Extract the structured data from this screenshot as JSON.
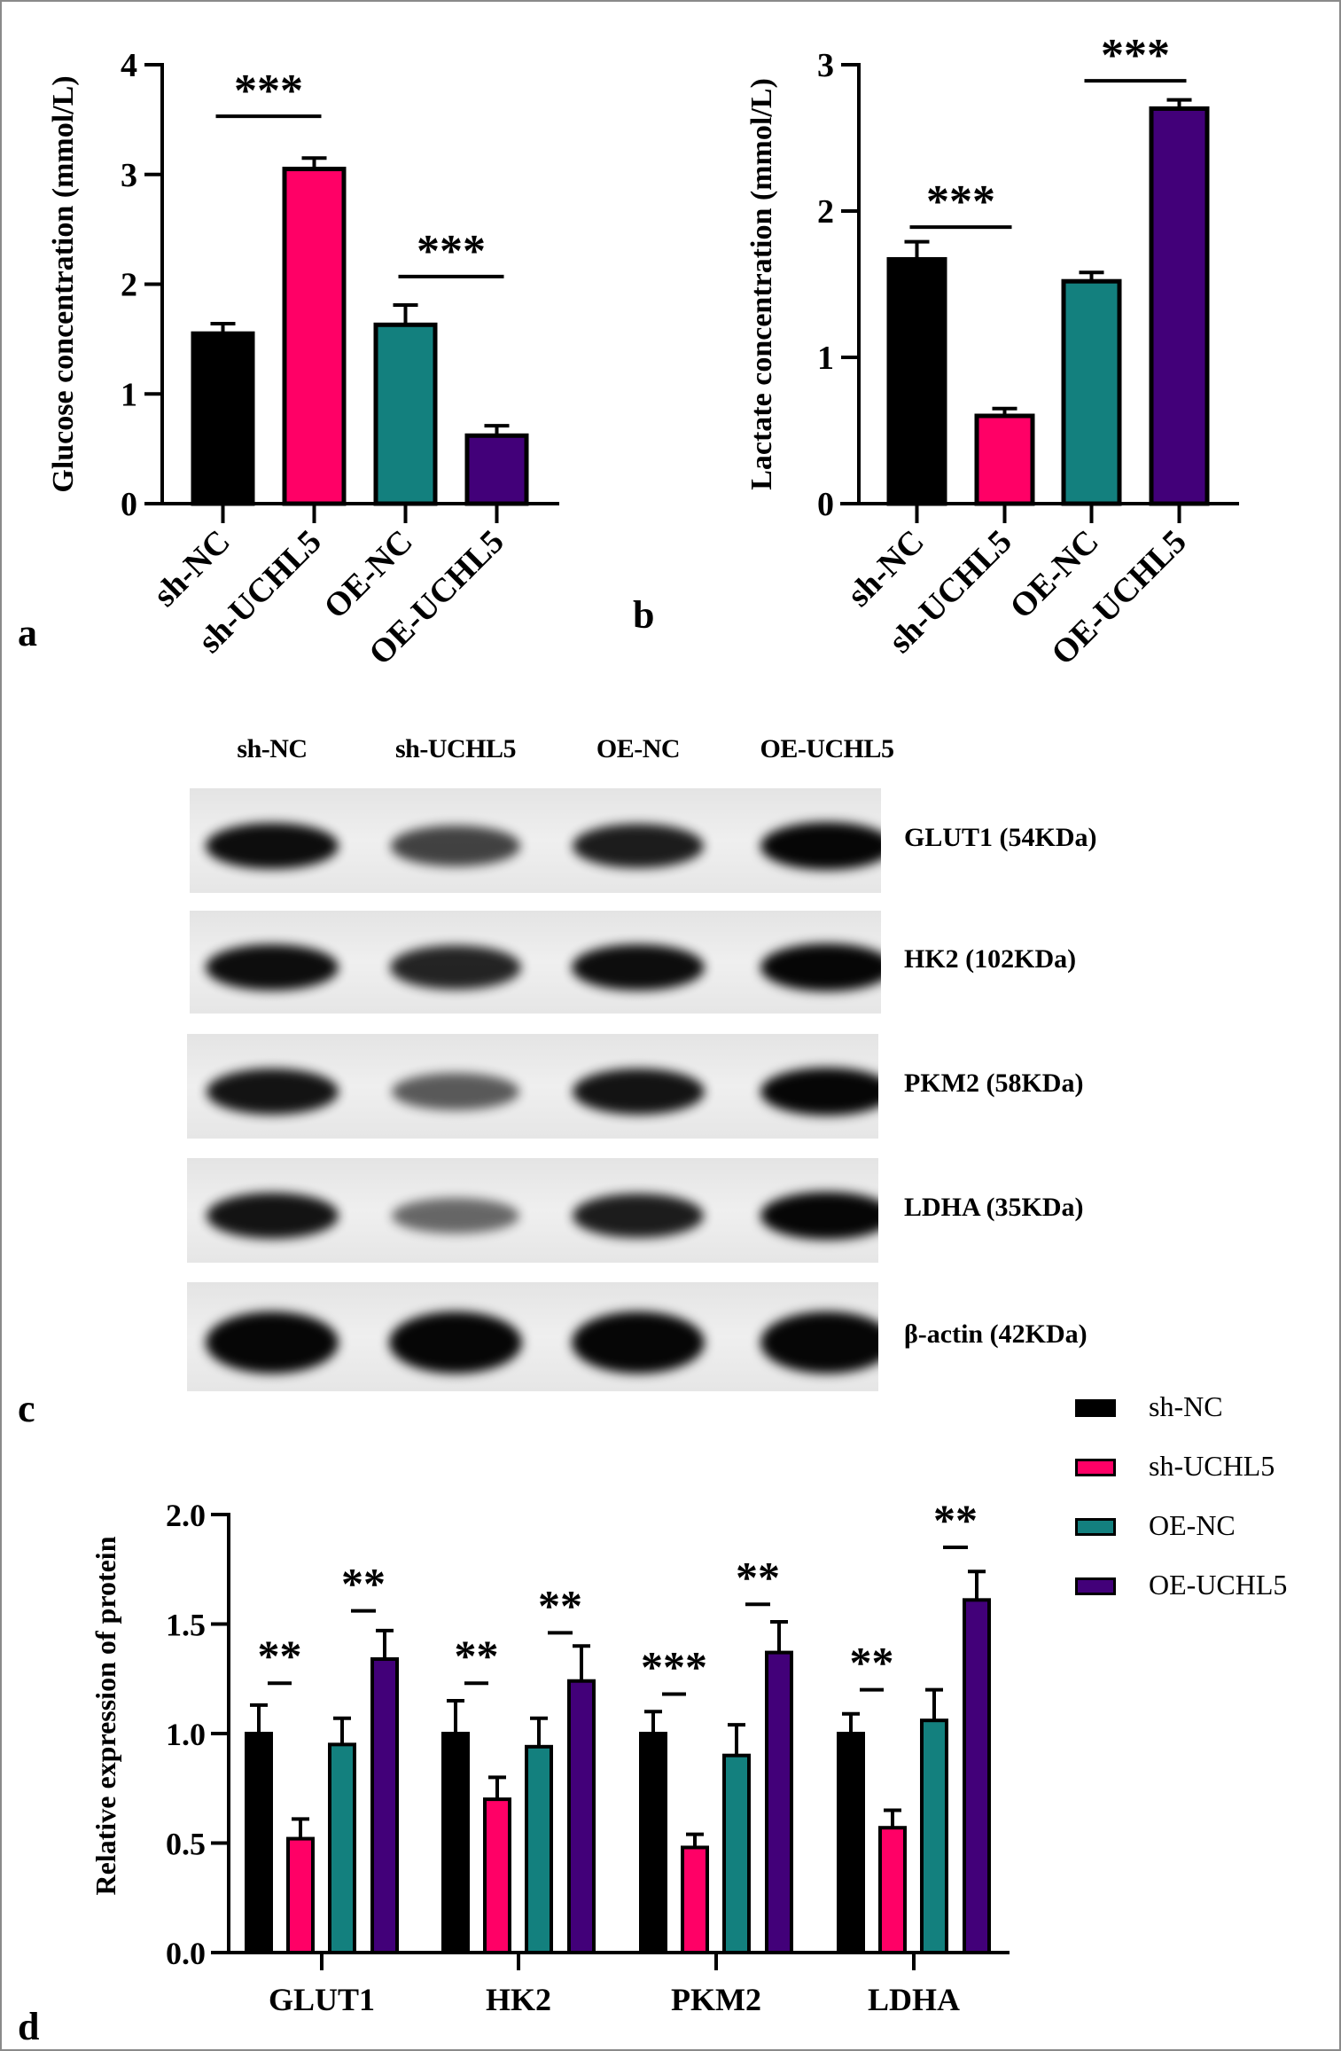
{
  "figure": {
    "panel_letters": {
      "a": "a",
      "b": "b",
      "c": "c",
      "d": "d"
    },
    "colors": {
      "sh-NC": "#000000",
      "sh-UCHL5": "#ff0066",
      "OE-NC": "#13807e",
      "OE-UCHL5": "#420079",
      "axis": "#000000",
      "border": "#8a8a8a"
    }
  },
  "chart_data": [
    {
      "panel": "a",
      "type": "bar",
      "title": "",
      "xlabel": "",
      "ylabel": "Glucose concentration (mmol/L)",
      "categories": [
        "sh-NC",
        "sh-UCHL5",
        "OE-NC",
        "OE-UCHL5"
      ],
      "values": [
        1.55,
        3.05,
        1.63,
        0.62
      ],
      "error": [
        0.09,
        0.1,
        0.18,
        0.09
      ],
      "ylim": [
        0,
        4
      ],
      "yticks": [
        0,
        1,
        2,
        3,
        4
      ],
      "ytick_labels": [
        "0",
        "1",
        "2",
        "3",
        "4"
      ],
      "grid": false,
      "xtick_rotation": -45,
      "significance": [
        {
          "from": "sh-NC",
          "to": "sh-UCHL5",
          "label": "***",
          "y": 3.53
        },
        {
          "from": "OE-NC",
          "to": "OE-UCHL5",
          "label": "***",
          "y": 2.07
        }
      ]
    },
    {
      "panel": "b",
      "type": "bar",
      "title": "",
      "xlabel": "",
      "ylabel": "Lactate concentration (mmol/L)",
      "categories": [
        "sh-NC",
        "sh-UCHL5",
        "OE-NC",
        "OE-UCHL5"
      ],
      "values": [
        1.67,
        0.6,
        1.52,
        2.7
      ],
      "error": [
        0.12,
        0.05,
        0.06,
        0.06
      ],
      "ylim": [
        0,
        3
      ],
      "yticks": [
        0,
        1,
        2,
        3
      ],
      "ytick_labels": [
        "0",
        "1",
        "2",
        "3"
      ],
      "grid": false,
      "xtick_rotation": -45,
      "significance": [
        {
          "from": "sh-NC",
          "to": "sh-UCHL5",
          "label": "***",
          "y": 1.89
        },
        {
          "from": "OE-NC",
          "to": "OE-UCHL5",
          "label": "***",
          "y": 2.89
        }
      ]
    },
    {
      "panel": "c",
      "type": "western_blot",
      "lanes": [
        "sh-NC",
        "sh-UCHL5",
        "OE-NC",
        "OE-UCHL5"
      ],
      "rows": [
        {
          "label": "GLUT1 (54KDa)",
          "intensity": [
            0.95,
            0.6,
            0.85,
            1.0
          ]
        },
        {
          "label": "HK2 (102KDa)",
          "intensity": [
            0.95,
            0.8,
            0.95,
            1.0
          ]
        },
        {
          "label": "PKM2 (58KDa)",
          "intensity": [
            0.9,
            0.45,
            0.9,
            1.0
          ]
        },
        {
          "label": "LDHA (35KDa)",
          "intensity": [
            0.9,
            0.35,
            0.85,
            1.0
          ]
        },
        {
          "label": "β-actin (42KDa)",
          "intensity": [
            1.0,
            1.0,
            1.0,
            1.0
          ]
        }
      ]
    },
    {
      "panel": "d",
      "type": "bar",
      "title": "",
      "xlabel": "",
      "ylabel": "Relative expression of protein",
      "categories": [
        "GLUT1",
        "HK2",
        "PKM2",
        "LDHA"
      ],
      "series": [
        {
          "name": "sh-NC",
          "values": [
            1.0,
            1.0,
            1.0,
            1.0
          ],
          "error": [
            0.13,
            0.15,
            0.1,
            0.09
          ]
        },
        {
          "name": "sh-UCHL5",
          "values": [
            0.52,
            0.7,
            0.48,
            0.57
          ],
          "error": [
            0.09,
            0.1,
            0.06,
            0.08
          ]
        },
        {
          "name": "OE-NC",
          "values": [
            0.95,
            0.94,
            0.9,
            1.06
          ],
          "error": [
            0.12,
            0.13,
            0.14,
            0.14
          ]
        },
        {
          "name": "OE-UCHL5",
          "values": [
            1.34,
            1.24,
            1.37,
            1.61
          ],
          "error": [
            0.13,
            0.16,
            0.14,
            0.13
          ]
        }
      ],
      "ylim": [
        0,
        2.0
      ],
      "yticks": [
        0,
        0.5,
        1.0,
        1.5,
        2.0
      ],
      "ytick_labels": [
        "0.0",
        "0.5",
        "1.0",
        "1.5",
        "2.0"
      ],
      "grid": false,
      "legend": {
        "position": "upper right",
        "entries": [
          "sh-NC",
          "sh-UCHL5",
          "OE-NC",
          "OE-UCHL5"
        ]
      },
      "significance": [
        {
          "category": "GLUT1",
          "pair": [
            "sh-NC",
            "sh-UCHL5"
          ],
          "label": "**",
          "y": 1.23
        },
        {
          "category": "GLUT1",
          "pair": [
            "OE-NC",
            "OE-UCHL5"
          ],
          "label": "**",
          "y": 1.56
        },
        {
          "category": "HK2",
          "pair": [
            "sh-NC",
            "sh-UCHL5"
          ],
          "label": "**",
          "y": 1.23
        },
        {
          "category": "HK2",
          "pair": [
            "OE-NC",
            "OE-UCHL5"
          ],
          "label": "**",
          "y": 1.46
        },
        {
          "category": "PKM2",
          "pair": [
            "sh-NC",
            "sh-UCHL5"
          ],
          "label": "***",
          "y": 1.18
        },
        {
          "category": "PKM2",
          "pair": [
            "OE-NC",
            "OE-UCHL5"
          ],
          "label": "**",
          "y": 1.59
        },
        {
          "category": "LDHA",
          "pair": [
            "sh-NC",
            "sh-UCHL5"
          ],
          "label": "**",
          "y": 1.2
        },
        {
          "category": "LDHA",
          "pair": [
            "OE-NC",
            "OE-UCHL5"
          ],
          "label": "**",
          "y": 1.85
        }
      ]
    }
  ]
}
